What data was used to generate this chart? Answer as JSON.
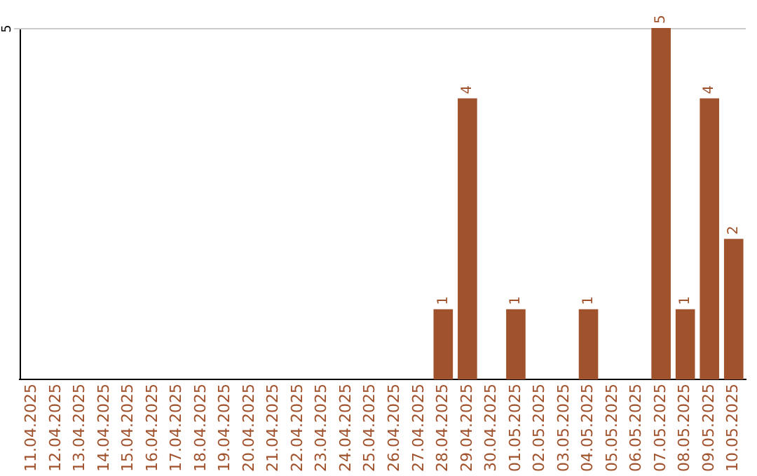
{
  "chart_data": {
    "type": "bar",
    "categories": [
      "11.04.2025",
      "12.04.2025",
      "13.04.2025",
      "14.04.2025",
      "15.04.2025",
      "16.04.2025",
      "17.04.2025",
      "18.04.2025",
      "19.04.2025",
      "20.04.2025",
      "21.04.2025",
      "22.04.2025",
      "23.04.2025",
      "24.04.2025",
      "25.04.2025",
      "26.04.2025",
      "27.04.2025",
      "28.04.2025",
      "29.04.2025",
      "30.04.2025",
      "01.05.2025",
      "02.05.2025",
      "03.05.2025",
      "04.05.2025",
      "05.05.2025",
      "06.05.2025",
      "07.05.2025",
      "08.05.2025",
      "09.05.2025",
      "10.05.2025"
    ],
    "values": [
      null,
      null,
      null,
      null,
      null,
      null,
      null,
      null,
      null,
      null,
      null,
      null,
      null,
      null,
      null,
      null,
      null,
      1,
      4,
      null,
      1,
      null,
      null,
      1,
      null,
      null,
      5,
      1,
      4,
      2
    ],
    "value_labels": [
      null,
      null,
      null,
      null,
      null,
      null,
      null,
      null,
      null,
      null,
      null,
      null,
      null,
      null,
      null,
      null,
      null,
      "1",
      "4",
      null,
      "1",
      null,
      null,
      "1",
      null,
      null,
      "5",
      "1",
      "4",
      "2"
    ],
    "color": "#a0522d",
    "ylim": [
      0,
      5
    ],
    "ref_lines": [
      {
        "axis": "y",
        "value": 5,
        "label": "5",
        "color": "#cccccc"
      }
    ],
    "legend": false
  }
}
